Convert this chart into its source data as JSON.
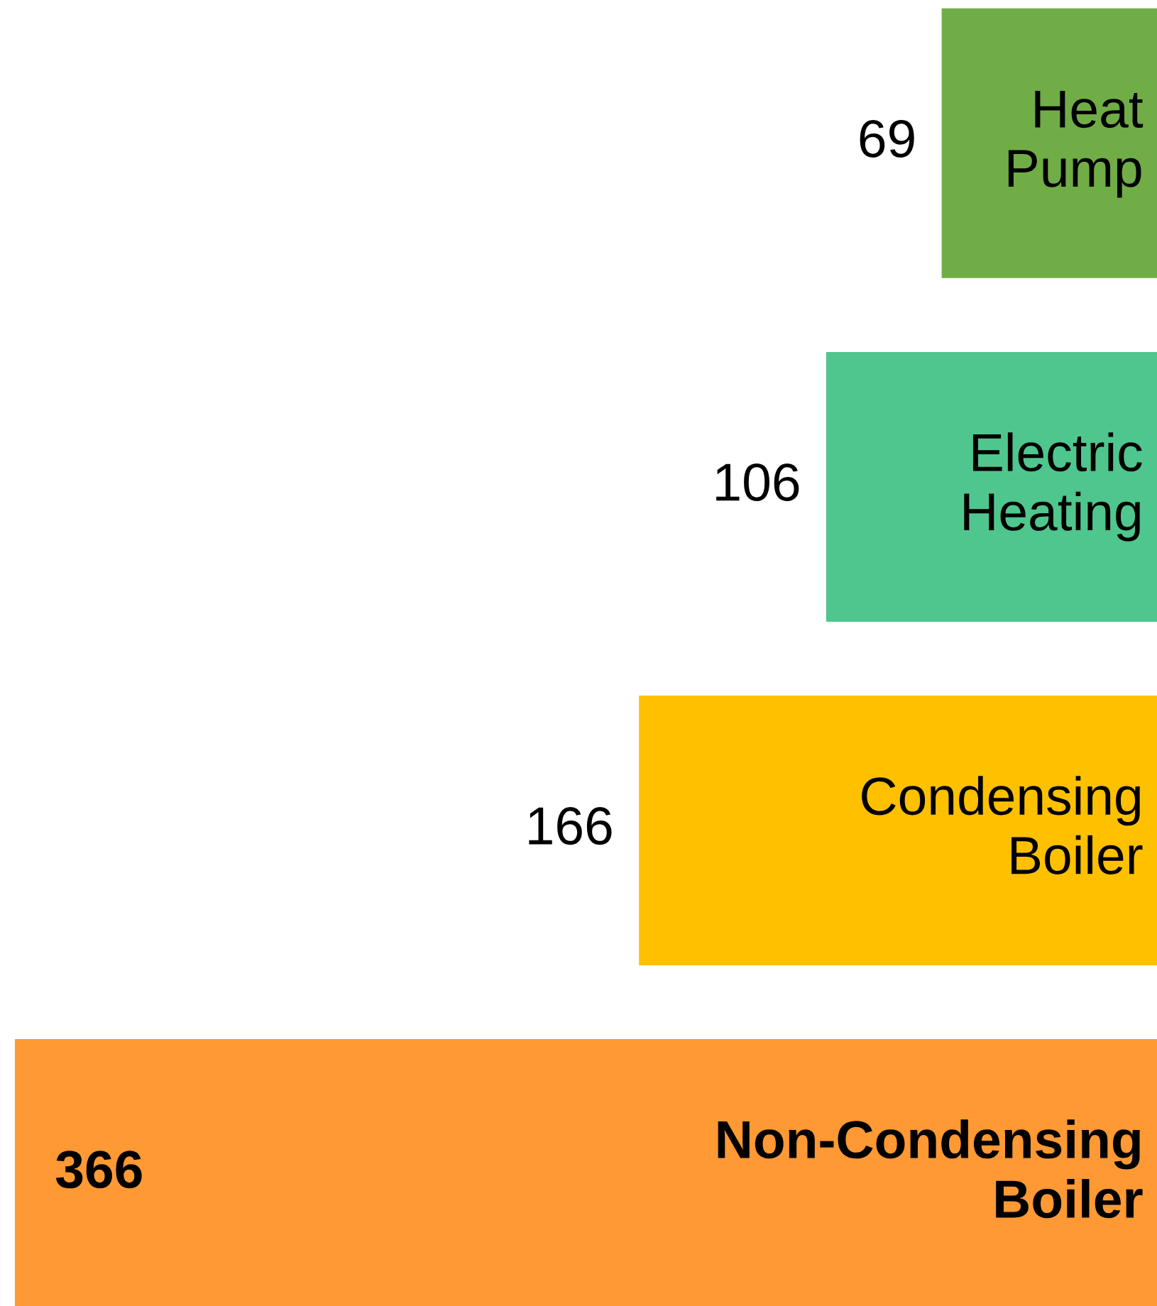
{
  "chart_data": {
    "type": "bar",
    "orientation": "horizontal",
    "categories": [
      "Heat\nPump",
      "Electric\nHeating",
      "Condensing\nBoiler",
      "Non-Condensing\nBoiler"
    ],
    "values": [
      69,
      106,
      166,
      366
    ],
    "colors": [
      "#70ad47",
      "#4fc68d",
      "#ffc000",
      "#ff9933"
    ],
    "data_labels": true
  }
}
